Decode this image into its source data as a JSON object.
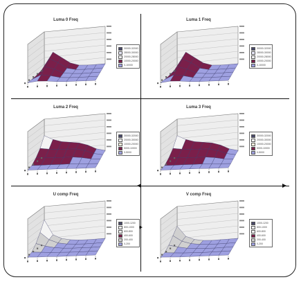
{
  "chart_data": [
    {
      "type": "surface",
      "title": "Luma 0 Freq",
      "panel": "top-left",
      "legend": [
        "30000-32000",
        "28000-30000",
        "20000-28000",
        "10000-20000",
        "0-10000"
      ],
      "legend_colors": [
        "#4a4a6a",
        "#e8e8f8",
        "#f0f0f0",
        "#7a1f4a",
        "#9ea0e0"
      ],
      "surface_rows": [
        [
          0.05,
          0.55,
          0.35,
          0.15,
          0.05,
          0.02,
          0.01,
          0.0
        ],
        [
          0.04,
          0.45,
          0.3,
          0.1,
          0.03,
          0.01,
          0.0,
          0.0
        ],
        [
          0.03,
          0.3,
          0.2,
          0.06,
          0.02,
          0.0,
          0.0,
          0.0
        ],
        [
          0.02,
          0.15,
          0.1,
          0.03,
          0.01,
          0.0,
          0.0,
          0.0
        ],
        [
          0.01,
          0.05,
          0.04,
          0.01,
          0.0,
          0.0,
          0.0,
          0.0
        ]
      ]
    },
    {
      "type": "surface",
      "title": "Luma 1 Freq",
      "panel": "top-right",
      "legend": [
        "30000-32000",
        "28000-30000",
        "20000-28000",
        "10000-20000",
        "0-10000"
      ],
      "legend_colors": [
        "#4a4a6a",
        "#e8e8f8",
        "#f0f0f0",
        "#7a1f4a",
        "#9ea0e0"
      ],
      "surface_rows": [
        [
          0.05,
          0.55,
          0.35,
          0.15,
          0.05,
          0.02,
          0.01,
          0.0
        ],
        [
          0.04,
          0.45,
          0.3,
          0.1,
          0.03,
          0.01,
          0.0,
          0.0
        ],
        [
          0.03,
          0.3,
          0.2,
          0.06,
          0.02,
          0.0,
          0.0,
          0.0
        ],
        [
          0.02,
          0.15,
          0.1,
          0.03,
          0.01,
          0.0,
          0.0,
          0.0
        ],
        [
          0.01,
          0.05,
          0.04,
          0.01,
          0.0,
          0.0,
          0.0,
          0.0
        ]
      ]
    },
    {
      "type": "surface",
      "title": "Luma 2 Freq",
      "panel": "middle-left",
      "legend": [
        "30000-32000",
        "20000-30000",
        "10000-20000",
        "5000-10000",
        "0-5000"
      ],
      "legend_colors": [
        "#4a4a6a",
        "#f4f4f4",
        "#fff8e0",
        "#7a1f4a",
        "#9ea0e0"
      ],
      "surface_rows": [
        [
          0.7,
          0.55,
          0.45,
          0.4,
          0.35,
          0.25,
          0.1,
          0.02
        ],
        [
          0.4,
          0.35,
          0.32,
          0.3,
          0.28,
          0.2,
          0.08,
          0.02
        ],
        [
          0.2,
          0.18,
          0.16,
          0.15,
          0.14,
          0.1,
          0.04,
          0.01
        ],
        [
          0.06,
          0.05,
          0.05,
          0.04,
          0.04,
          0.03,
          0.01,
          0.0
        ],
        [
          0.01,
          0.01,
          0.01,
          0.01,
          0.01,
          0.0,
          0.0,
          0.0
        ]
      ]
    },
    {
      "type": "surface",
      "title": "Luma 3 Freq",
      "panel": "middle-right",
      "legend": [
        "30000-32000",
        "20000-30000",
        "10000-20000",
        "5000-10000",
        "0-5000"
      ],
      "legend_colors": [
        "#4a4a6a",
        "#f4f4f4",
        "#fff8e0",
        "#7a1f4a",
        "#9ea0e0"
      ],
      "surface_rows": [
        [
          0.7,
          0.55,
          0.45,
          0.4,
          0.35,
          0.25,
          0.1,
          0.02
        ],
        [
          0.4,
          0.35,
          0.32,
          0.3,
          0.28,
          0.2,
          0.08,
          0.02
        ],
        [
          0.2,
          0.18,
          0.16,
          0.15,
          0.14,
          0.1,
          0.04,
          0.01
        ],
        [
          0.06,
          0.05,
          0.05,
          0.04,
          0.04,
          0.03,
          0.01,
          0.0
        ],
        [
          0.01,
          0.01,
          0.01,
          0.01,
          0.01,
          0.0,
          0.0,
          0.0
        ]
      ]
    },
    {
      "type": "surface",
      "title": "U comp Freq",
      "panel": "bottom-left",
      "legend": [
        "1000-1200",
        "800-1000",
        "600-800",
        "400-600",
        "200-400",
        "0-200"
      ],
      "legend_colors": [
        "#4a4a6a",
        "#f4f4f4",
        "#f0f0f0",
        "#7a1f4a",
        "#d0d0d0",
        "#9ea0e0"
      ],
      "surface_rows": [
        [
          0.8,
          0.3,
          0.15,
          0.08,
          0.04,
          0.02,
          0.01,
          0.0
        ],
        [
          0.5,
          0.25,
          0.12,
          0.06,
          0.03,
          0.01,
          0.0,
          0.0
        ],
        [
          0.25,
          0.15,
          0.08,
          0.04,
          0.02,
          0.01,
          0.0,
          0.0
        ],
        [
          0.08,
          0.06,
          0.03,
          0.02,
          0.01,
          0.0,
          0.0,
          0.0
        ],
        [
          0.02,
          0.01,
          0.01,
          0.0,
          0.0,
          0.0,
          0.0,
          0.0
        ]
      ]
    },
    {
      "type": "surface",
      "title": "V comp Freq",
      "panel": "bottom-right",
      "legend": [
        "1000-1200",
        "800-1000",
        "600-800",
        "400-600",
        "200-400",
        "0-200"
      ],
      "legend_colors": [
        "#4a4a6a",
        "#f4f4f4",
        "#f0f0f0",
        "#7a1f4a",
        "#d0d0d0",
        "#9ea0e0"
      ],
      "surface_rows": [
        [
          0.6,
          0.25,
          0.12,
          0.06,
          0.03,
          0.02,
          0.01,
          0.0
        ],
        [
          0.4,
          0.2,
          0.1,
          0.05,
          0.02,
          0.01,
          0.0,
          0.0
        ],
        [
          0.2,
          0.12,
          0.06,
          0.03,
          0.01,
          0.0,
          0.0,
          0.0
        ],
        [
          0.06,
          0.04,
          0.02,
          0.01,
          0.0,
          0.0,
          0.0,
          0.0
        ],
        [
          0.02,
          0.01,
          0.0,
          0.0,
          0.0,
          0.0,
          0.0,
          0.0
        ]
      ]
    }
  ]
}
